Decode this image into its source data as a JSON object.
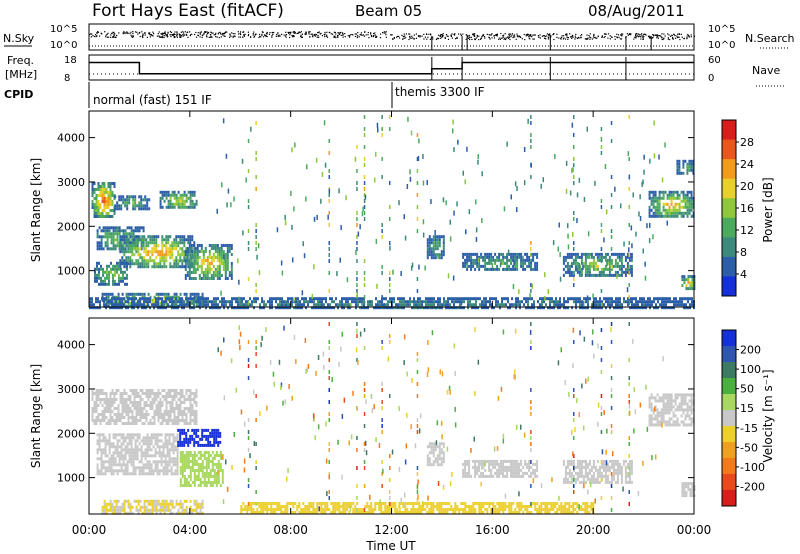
{
  "header": {
    "station": "Fort Hays East (fitACF)",
    "beam": "Beam 05",
    "date": "08/Aug/2011"
  },
  "noise_panel": {
    "left_label": "N.Sky",
    "right_label": "N.Search",
    "y_ticks": [
      "10^5",
      "10^0"
    ]
  },
  "freq_panel": {
    "left_label_1": "Freq.",
    "left_label_2": "[MHz]",
    "y_ticks": [
      "18",
      "8"
    ],
    "right_ticks": [
      "60",
      "0"
    ],
    "right_label": "Nave"
  },
  "cpid": {
    "label": "CPID",
    "modes": [
      {
        "text": "normal (fast) 151 IF",
        "start_hour": 0
      },
      {
        "text": "themis 3300 IF",
        "start_hour": 12.05
      }
    ]
  },
  "colors": {
    "power": [
      "#1530d8",
      "#2c5fa8",
      "#3d8a7c",
      "#4caa5e",
      "#8ec83a",
      "#e8d02c",
      "#f29a1c",
      "#e8581c",
      "#d81e1c"
    ],
    "velocity": [
      "#1530d8",
      "#2f55b0",
      "#3d7a64",
      "#4cb040",
      "#a8d860",
      "#c8c8c8",
      "#ecd02c",
      "#f0a020",
      "#f07a1c",
      "#e84a1c",
      "#d81e1c"
    ]
  },
  "chart_data": [
    {
      "type": "heatmap",
      "name": "power",
      "ylabel": "Slant Range [km]",
      "xlabel": "",
      "xlim": [
        0,
        24
      ],
      "ylim": [
        180,
        4600
      ],
      "y_ticks": [
        "4000",
        "3000",
        "2000",
        "1000"
      ],
      "x_ticks": [
        "00:00",
        "04:00",
        "08:00",
        "12:00",
        "16:00",
        "20:00",
        "00:00"
      ],
      "colorbar": {
        "label": "Power [dB]",
        "ticks": [
          "28",
          "24",
          "20",
          "16",
          "12",
          "8",
          "4"
        ]
      },
      "regions": [
        {
          "t0": 0.1,
          "t1": 1.0,
          "r0": 2200,
          "r1": 3000,
          "level": 28
        },
        {
          "t0": 1.0,
          "t1": 2.4,
          "r0": 2400,
          "r1": 2700,
          "level": 14
        },
        {
          "t0": 2.8,
          "t1": 4.3,
          "r0": 2400,
          "r1": 2800,
          "level": 18
        },
        {
          "t0": 0.3,
          "t1": 2.2,
          "r0": 1500,
          "r1": 2000,
          "level": 16
        },
        {
          "t0": 1.2,
          "t1": 4.2,
          "r0": 1100,
          "r1": 1800,
          "level": 24
        },
        {
          "t0": 3.8,
          "t1": 5.7,
          "r0": 800,
          "r1": 1600,
          "level": 22
        },
        {
          "t0": 0.2,
          "t1": 1.5,
          "r0": 700,
          "r1": 1200,
          "level": 16
        },
        {
          "t0": 0.5,
          "t1": 4.5,
          "r0": 200,
          "r1": 500,
          "level": 20
        },
        {
          "t0": 13.4,
          "t1": 14.1,
          "r0": 1300,
          "r1": 1800,
          "level": 12
        },
        {
          "t0": 14.8,
          "t1": 17.8,
          "r0": 1000,
          "r1": 1400,
          "level": 12
        },
        {
          "t0": 18.8,
          "t1": 21.5,
          "r0": 900,
          "r1": 1400,
          "level": 16
        },
        {
          "t0": 22.2,
          "t1": 24.0,
          "r0": 2200,
          "r1": 2800,
          "level": 22
        },
        {
          "t0": 23.3,
          "t1": 24.0,
          "r0": 3200,
          "r1": 3500,
          "level": 12
        },
        {
          "t0": 23.5,
          "t1": 24.0,
          "r0": 600,
          "r1": 900,
          "level": 26
        },
        {
          "t0": 0.0,
          "t1": 24.0,
          "r0": 180,
          "r1": 400,
          "level": 8
        }
      ]
    },
    {
      "type": "heatmap",
      "name": "velocity",
      "ylabel": "Slant Range [km]",
      "xlabel": "Time UT",
      "xlim": [
        0,
        24
      ],
      "ylim": [
        180,
        4600
      ],
      "y_ticks": [
        "4000",
        "3000",
        "2000",
        "1000"
      ],
      "x_ticks": [
        "00:00",
        "04:00",
        "08:00",
        "12:00",
        "16:00",
        "20:00",
        "00:00"
      ],
      "colorbar": {
        "label": "Velocity [m s⁻¹]",
        "ticks": [
          "200",
          "100",
          "50",
          "15",
          "-15",
          "-50",
          "-100",
          "-200"
        ]
      },
      "regions": [
        {
          "t0": 0.1,
          "t1": 4.3,
          "r0": 2200,
          "r1": 3000,
          "level": 0
        },
        {
          "t0": 0.3,
          "t1": 3.5,
          "r0": 1100,
          "r1": 2000,
          "level": 0
        },
        {
          "t0": 3.5,
          "t1": 5.2,
          "r0": 1700,
          "r1": 2100,
          "level": 200
        },
        {
          "t0": 3.6,
          "t1": 5.3,
          "r0": 800,
          "r1": 1600,
          "level": 30
        },
        {
          "t0": 0.5,
          "t1": 4.5,
          "r0": 200,
          "r1": 500,
          "level": -20
        },
        {
          "t0": 6.0,
          "t1": 20.0,
          "r0": 180,
          "r1": 450,
          "level": -40
        },
        {
          "t0": 13.4,
          "t1": 14.1,
          "r0": 1300,
          "r1": 1800,
          "level": 0
        },
        {
          "t0": 14.8,
          "t1": 17.8,
          "r0": 1000,
          "r1": 1400,
          "level": 0
        },
        {
          "t0": 18.8,
          "t1": 21.5,
          "r0": 900,
          "r1": 1400,
          "level": 0
        },
        {
          "t0": 22.2,
          "t1": 24.0,
          "r0": 2200,
          "r1": 2900,
          "level": 0
        },
        {
          "t0": 23.5,
          "t1": 24.0,
          "r0": 600,
          "r1": 900,
          "level": 0
        }
      ]
    },
    {
      "type": "line",
      "name": "frequency",
      "ylabel": "Freq. [MHz]",
      "xlim": [
        0,
        24
      ],
      "ylim": [
        8,
        18
      ],
      "x": [
        0,
        2.0,
        2.0,
        13.6,
        13.6,
        14.8,
        14.8,
        18.3,
        18.3,
        21.3,
        21.3,
        24
      ],
      "y": [
        15,
        15,
        10.5,
        10.5,
        12.5,
        12.5,
        15,
        15,
        15,
        15,
        15,
        15
      ]
    }
  ]
}
